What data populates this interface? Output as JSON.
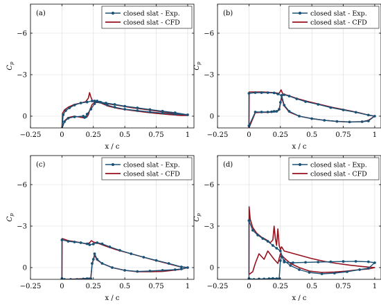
{
  "colors": {
    "exp": "#1a5276",
    "cfd": "#96101e",
    "grid": "#d9d9d9"
  },
  "chart_data": [
    {
      "type": "line",
      "panel_label": "(a)",
      "xlabel": "x / c",
      "ylabel": "C",
      "ylabel_sub": "p",
      "xlim": [
        -0.25,
        1.05
      ],
      "ylim": [
        0.85,
        -8.1
      ],
      "y_inverted": true,
      "grid": true,
      "x_ticks": [
        -0.25,
        0,
        0.25,
        0.5,
        0.75,
        1
      ],
      "x_tick_labels": [
        "−0.25",
        "0",
        "0.25",
        "0.5",
        "0.75",
        "1"
      ],
      "y_ticks": [
        -6,
        -3,
        0
      ],
      "y_tick_labels": [
        "−6",
        "−3",
        "0"
      ],
      "legend_position": "top-right",
      "series": [
        {
          "name": "closed slat - Exp.",
          "marker": "circle",
          "x": [
            0.0,
            0.01,
            0.03,
            0.06,
            0.1,
            0.15,
            0.2,
            0.24,
            0.26,
            0.28,
            0.3,
            0.35,
            0.42,
            0.5,
            0.6,
            0.7,
            0.8,
            0.9,
            1.0,
            0.9,
            0.8,
            0.7,
            0.6,
            0.5,
            0.42,
            0.36,
            0.31,
            0.28,
            0.26,
            0.23,
            0.2,
            0.19,
            0.18,
            0.17,
            0.1,
            0.05,
            0.02,
            0.0
          ],
          "y": [
            0.9,
            -0.1,
            -0.4,
            -0.6,
            -0.8,
            -0.95,
            -1.02,
            -1.1,
            -1.1,
            -1.08,
            -1.02,
            -0.95,
            -0.85,
            -0.72,
            -0.6,
            -0.48,
            -0.36,
            -0.25,
            -0.1,
            -0.15,
            -0.22,
            -0.3,
            -0.4,
            -0.5,
            -0.65,
            -0.8,
            -1.0,
            -1.1,
            -0.9,
            -0.5,
            -0.15,
            0.05,
            0.1,
            0.0,
            0.05,
            0.15,
            0.4,
            0.9
          ]
        },
        {
          "name": "closed slat - CFD",
          "marker": "none",
          "x": [
            0.0,
            0.005,
            0.02,
            0.05,
            0.1,
            0.15,
            0.19,
            0.21,
            0.22,
            0.23,
            0.24,
            0.26,
            0.3,
            0.36,
            0.45,
            0.55,
            0.65,
            0.75,
            0.85,
            0.95,
            1.0,
            0.95,
            0.85,
            0.75,
            0.65,
            0.55,
            0.45,
            0.37,
            0.31,
            0.27,
            0.24,
            0.22,
            0.21,
            0.2,
            0.17,
            0.1,
            0.05,
            0.02,
            0.0
          ],
          "y": [
            0.9,
            -0.2,
            -0.45,
            -0.65,
            -0.85,
            -0.95,
            -1.05,
            -1.3,
            -1.7,
            -1.4,
            -1.15,
            -1.0,
            -0.98,
            -0.9,
            -0.78,
            -0.62,
            -0.5,
            -0.38,
            -0.26,
            -0.12,
            -0.05,
            -0.05,
            -0.12,
            -0.2,
            -0.3,
            -0.42,
            -0.55,
            -0.72,
            -0.95,
            -1.05,
            -0.85,
            -0.4,
            -0.1,
            0.05,
            0.12,
            0.0,
            0.1,
            0.35,
            0.9
          ]
        }
      ]
    },
    {
      "type": "line",
      "panel_label": "(b)",
      "xlabel": "x / c",
      "ylabel": "C",
      "ylabel_sub": "p",
      "xlim": [
        -0.25,
        1.05
      ],
      "ylim": [
        0.85,
        -8.1
      ],
      "y_inverted": true,
      "grid": true,
      "x_ticks": [
        -0.25,
        0,
        0.25,
        0.5,
        0.75,
        1
      ],
      "x_tick_labels": [
        "−0.25",
        "0",
        "0.25",
        "0.5",
        "0.75",
        "1"
      ],
      "y_ticks": [
        -6,
        -3,
        0
      ],
      "y_tick_labels": [
        "−6",
        "−3",
        "0"
      ],
      "legend_position": "top-right",
      "series": [
        {
          "name": "closed slat - Exp.",
          "marker": "circle",
          "x": [
            0.0,
            0.0,
            0.05,
            0.1,
            0.15,
            0.2,
            0.23,
            0.26,
            0.28,
            0.32,
            0.38,
            0.45,
            0.55,
            0.65,
            0.75,
            0.85,
            0.95,
            1.0,
            0.95,
            0.9,
            0.8,
            0.7,
            0.6,
            0.5,
            0.4,
            0.32,
            0.28,
            0.26,
            0.25,
            0.24,
            0.22,
            0.2,
            0.18,
            0.15,
            0.1,
            0.05,
            0.0
          ],
          "y": [
            0.7,
            -1.65,
            -1.7,
            -1.7,
            -1.7,
            -1.68,
            -1.6,
            -1.5,
            -1.55,
            -1.45,
            -1.25,
            -1.05,
            -0.85,
            -0.62,
            -0.45,
            -0.28,
            -0.08,
            0.0,
            0.35,
            0.4,
            0.42,
            0.38,
            0.3,
            0.18,
            0.0,
            -0.35,
            -0.8,
            -1.5,
            -1.0,
            -0.5,
            -0.35,
            -0.35,
            -0.32,
            -0.3,
            -0.3,
            -0.3,
            0.7
          ]
        },
        {
          "name": "closed slat - CFD",
          "marker": "none",
          "x": [
            0.0,
            0.002,
            0.05,
            0.1,
            0.15,
            0.2,
            0.24,
            0.255,
            0.27,
            0.31,
            0.38,
            0.46,
            0.56,
            0.66,
            0.76,
            0.86,
            0.95,
            1.0,
            0.95,
            0.9,
            0.8,
            0.7,
            0.6,
            0.5,
            0.4,
            0.32,
            0.28,
            0.26,
            0.25,
            0.24,
            0.22,
            0.2,
            0.18,
            0.15,
            0.1,
            0.05,
            0.0
          ],
          "y": [
            0.85,
            -1.75,
            -1.75,
            -1.75,
            -1.73,
            -1.7,
            -1.65,
            -1.9,
            -1.6,
            -1.5,
            -1.28,
            -1.08,
            -0.86,
            -0.64,
            -0.46,
            -0.28,
            -0.08,
            0.0,
            0.3,
            0.4,
            0.42,
            0.38,
            0.3,
            0.18,
            0.0,
            -0.3,
            -0.75,
            -1.35,
            -0.9,
            -0.45,
            -0.32,
            -0.3,
            -0.3,
            -0.28,
            -0.28,
            -0.25,
            0.85
          ]
        }
      ]
    },
    {
      "type": "line",
      "panel_label": "(c)",
      "xlabel": "x / c",
      "ylabel": "C",
      "ylabel_sub": "p",
      "xlim": [
        -0.25,
        1.05
      ],
      "ylim": [
        0.85,
        -8.1
      ],
      "y_inverted": true,
      "grid": true,
      "x_ticks": [
        -0.25,
        0,
        0.25,
        0.5,
        0.75,
        1
      ],
      "x_tick_labels": [
        "−0.25",
        "0",
        "0.25",
        "0.5",
        "0.75",
        "1"
      ],
      "y_ticks": [
        -6,
        -3,
        0
      ],
      "y_tick_labels": [
        "−6",
        "−3",
        "0"
      ],
      "legend_position": "top-right",
      "series": [
        {
          "name": "closed slat - Exp.",
          "marker": "circle",
          "x": [
            0.0,
            0.0,
            0.05,
            0.1,
            0.15,
            0.2,
            0.22,
            0.25,
            0.28,
            0.32,
            0.38,
            0.46,
            0.55,
            0.65,
            0.75,
            0.85,
            0.95,
            1.0,
            0.95,
            0.9,
            0.8,
            0.7,
            0.6,
            0.5,
            0.4,
            0.32,
            0.28,
            0.26,
            0.25,
            0.24,
            0.23,
            0.2,
            0.17,
            0.12,
            0.07,
            0.02,
            0.0
          ],
          "y": [
            0.8,
            -2.0,
            -1.9,
            -1.85,
            -1.8,
            -1.72,
            -1.65,
            -1.7,
            -1.8,
            -1.72,
            -1.5,
            -1.25,
            -1.0,
            -0.75,
            -0.52,
            -0.3,
            -0.05,
            0.0,
            0.1,
            0.15,
            0.2,
            0.25,
            0.28,
            0.2,
            0.0,
            -0.3,
            -0.6,
            -1.0,
            -0.6,
            -0.3,
            0.8,
            0.8,
            0.82,
            0.85,
            0.85,
            0.85,
            0.8
          ]
        },
        {
          "name": "closed slat - CFD",
          "marker": "none",
          "x": [
            0.0,
            0.002,
            0.05,
            0.1,
            0.15,
            0.2,
            0.22,
            0.235,
            0.25,
            0.29,
            0.35,
            0.43,
            0.53,
            0.63,
            0.73,
            0.83,
            0.93,
            1.0,
            0.95,
            0.9,
            0.8,
            0.7,
            0.6,
            0.5,
            0.4,
            0.32,
            0.28,
            0.26,
            0.25,
            0.24,
            0.23,
            0.2,
            0.17,
            0.12,
            0.07,
            0.02,
            0.0
          ],
          "y": [
            0.85,
            -2.1,
            -1.95,
            -1.88,
            -1.8,
            -1.7,
            -1.8,
            -1.95,
            -1.85,
            -1.75,
            -1.55,
            -1.3,
            -1.05,
            -0.8,
            -0.55,
            -0.32,
            -0.08,
            0.0,
            0.12,
            0.18,
            0.28,
            0.3,
            0.3,
            0.2,
            0.0,
            -0.3,
            -0.55,
            -0.9,
            -0.55,
            -0.25,
            0.75,
            0.78,
            0.8,
            0.82,
            0.84,
            0.86,
            0.85
          ]
        }
      ]
    },
    {
      "type": "line",
      "panel_label": "(d)",
      "xlabel": "x / c",
      "ylabel": "C",
      "ylabel_sub": "p",
      "xlim": [
        -0.25,
        1.05
      ],
      "ylim": [
        0.85,
        -8.1
      ],
      "y_inverted": true,
      "grid": true,
      "x_ticks": [
        -0.25,
        0,
        0.25,
        0.5,
        0.75,
        1
      ],
      "x_tick_labels": [
        "−0.25",
        "0",
        "0.25",
        "0.5",
        "0.75",
        "1"
      ],
      "y_ticks": [
        -6,
        -3,
        0
      ],
      "y_tick_labels": [
        "−6",
        "−3",
        "0"
      ],
      "legend_position": "top-right",
      "series": [
        {
          "name": "closed slat - Exp.",
          "marker": "circle",
          "x": [
            0.0,
            0.0,
            0.03,
            0.07,
            0.11,
            0.15,
            0.19,
            0.22,
            0.25,
            0.28,
            0.35,
            0.45,
            0.55,
            0.65,
            0.75,
            0.85,
            0.95,
            1.0,
            0.95,
            0.88,
            0.78,
            0.68,
            0.58,
            0.48,
            0.4,
            0.33,
            0.28,
            0.26,
            0.25,
            0.24,
            0.22,
            0.19,
            0.16,
            0.12,
            0.08,
            0.04,
            0.0
          ],
          "y": [
            0.8,
            -3.4,
            -2.7,
            -2.35,
            -2.1,
            -1.9,
            -1.6,
            -1.4,
            -1.2,
            -0.4,
            -0.35,
            -0.38,
            -0.4,
            -0.42,
            -0.44,
            -0.45,
            -0.42,
            -0.35,
            0.05,
            0.15,
            0.3,
            0.4,
            0.45,
            0.35,
            0.15,
            -0.15,
            -0.5,
            -0.8,
            -0.5,
            0.8,
            0.8,
            0.78,
            0.8,
            0.82,
            0.82,
            0.85,
            0.8
          ]
        },
        {
          "name": "closed slat - CFD",
          "marker": "none",
          "x": [
            0.0,
            0.001,
            0.01,
            0.03,
            0.06,
            0.1,
            0.14,
            0.17,
            0.19,
            0.2,
            0.21,
            0.22,
            0.23,
            0.24,
            0.25,
            0.26,
            0.28,
            0.32,
            0.4,
            0.5,
            0.6,
            0.7,
            0.8,
            0.9,
            1.0,
            0.95,
            0.88,
            0.78,
            0.68,
            0.58,
            0.48,
            0.4,
            0.33,
            0.28,
            0.25,
            0.23,
            0.2,
            0.15,
            0.12,
            0.08,
            0.05,
            0.03,
            0.0
          ],
          "y": [
            0.5,
            -4.4,
            -3.5,
            -2.9,
            -2.5,
            -2.2,
            -2.0,
            -1.8,
            -2.0,
            -3.0,
            -2.1,
            -1.6,
            -2.8,
            -1.6,
            -1.3,
            -1.5,
            -1.2,
            -1.1,
            -0.9,
            -0.65,
            -0.45,
            -0.3,
            -0.18,
            -0.08,
            0.0,
            0.1,
            0.15,
            0.25,
            0.32,
            0.35,
            0.25,
            0.0,
            -0.3,
            -0.7,
            -1.0,
            -0.3,
            -0.6,
            -1.2,
            -0.6,
            -1.0,
            -0.3,
            0.3,
            0.5
          ]
        }
      ]
    }
  ]
}
